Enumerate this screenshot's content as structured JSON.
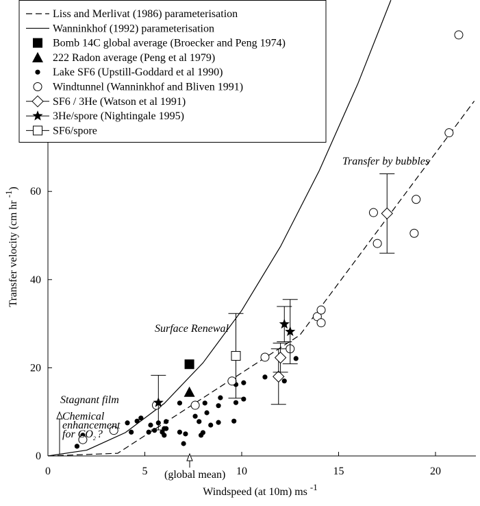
{
  "chart_data": {
    "type": "scatter",
    "x_label": "Windspeed (at 10m) ms",
    "x_label_sup": "-1",
    "y_label": "Transfer velocity (cm hr",
    "y_label_sup": "-1",
    "y_label_end": ")",
    "xlim": [
      0,
      22
    ],
    "ylim": [
      0,
      103
    ],
    "xticks": [
      0,
      5,
      10,
      15,
      20
    ],
    "yticks": [
      0,
      20,
      40,
      60
    ],
    "series": [
      {
        "name": "Liss and Merlivat (1986) parameterisation",
        "marker": "dashed-line",
        "color": "#000000",
        "x": [
          0,
          3.6,
          13,
          22
        ],
        "values": [
          0,
          0.6,
          27.4,
          80.5
        ]
      },
      {
        "name": "Wanninkhof (1992) parameterisation",
        "marker": "solid-line",
        "color": "#000000",
        "x": [
          0,
          2,
          4,
          6,
          8,
          10,
          12,
          14,
          16,
          17.7
        ],
        "values": [
          0,
          1.3,
          5.3,
          11.9,
          21.1,
          33,
          47.5,
          64.7,
          84.5,
          103.4
        ]
      },
      {
        "name": "Bomb 14C global average (Broecker and Peng 1974)",
        "marker": "filled-square",
        "color": "#000000",
        "x": [
          7.3
        ],
        "values": [
          20.8
        ]
      },
      {
        "name": "222 Radon average (Peng et al 1979)",
        "marker": "filled-triangle",
        "color": "#000000",
        "x": [
          7.3
        ],
        "values": [
          14.5
        ]
      },
      {
        "name": "Lake SF6 (Upstill-Goddard et al 1990)",
        "marker": "filled-dot",
        "color": "#000000",
        "x": [
          1.5,
          1.8,
          4.1,
          4.3,
          4.6,
          4.8,
          5.2,
          5.3,
          5.5,
          5.7,
          5.9,
          6.0,
          6.1,
          6.1,
          6.0,
          6.8,
          6.8,
          7.1,
          7.0,
          7.6,
          7.8,
          7.9,
          8.0,
          8.1,
          8.2,
          8.4,
          8.8,
          8.8,
          8.9,
          9.6,
          9.7,
          9.7,
          10.1,
          10.1,
          11.2,
          12.2,
          12.8
        ],
        "values": [
          2.2,
          4.7,
          7.5,
          5.4,
          7.9,
          8.6,
          5.4,
          7.0,
          5.8,
          7.5,
          5.4,
          4.7,
          7.8,
          6.2,
          6.2,
          12.0,
          5.4,
          5.0,
          2.8,
          9.0,
          7.8,
          4.7,
          5.3,
          12.0,
          9.8,
          7.0,
          11.4,
          7.6,
          13.2,
          7.9,
          12.1,
          16.2,
          16.6,
          12.9,
          17.9,
          17.0,
          22.1
        ]
      },
      {
        "name": "Windtunnel (Wanninkhof and Bliven 1991)",
        "marker": "open-circle",
        "color": "#000000",
        "x": [
          1.8,
          3.4,
          5.6,
          7.6,
          9.5,
          11.2,
          12.5,
          13.9,
          14.1,
          14.1,
          16.8,
          17.0,
          19.0,
          18.9,
          20.7,
          21.2
        ],
        "values": [
          3.7,
          5.8,
          11.5,
          11.5,
          17.0,
          22.4,
          24.3,
          31.6,
          33.1,
          30.2,
          55.2,
          48.2,
          58.2,
          50.5,
          73.3,
          95.5
        ]
      },
      {
        "name": "SF6 / 3He (Watson et al 1991)",
        "marker": "open-diamond",
        "color": "#000000",
        "x": [
          17.5,
          11.9,
          12.0
        ],
        "values": [
          55,
          18.0,
          22.3
        ],
        "errors": [
          9,
          6.3,
          3.3
        ]
      },
      {
        "name": "3He/spore (Nightingale 1995)",
        "marker": "filled-star",
        "color": "#000000",
        "x": [
          5.7,
          12.2,
          12.5
        ],
        "values": [
          12.1,
          29.9,
          28.2
        ],
        "errors": [
          6.2,
          4,
          7.3
        ]
      },
      {
        "name": "SF6/spore",
        "marker": "open-square",
        "color": "#000000",
        "x": [
          9.7
        ],
        "values": [
          22.7
        ],
        "errors": [
          9.6
        ]
      }
    ],
    "annotations": [
      "Transfer by bubbles",
      "Surface Renewal",
      "Stagnant film",
      "(global mean)"
    ],
    "chemical_note": {
      "lines": [
        "Chemical",
        "enhancement",
        "for CO"
      ],
      "sub": "2",
      "end": "?"
    }
  }
}
